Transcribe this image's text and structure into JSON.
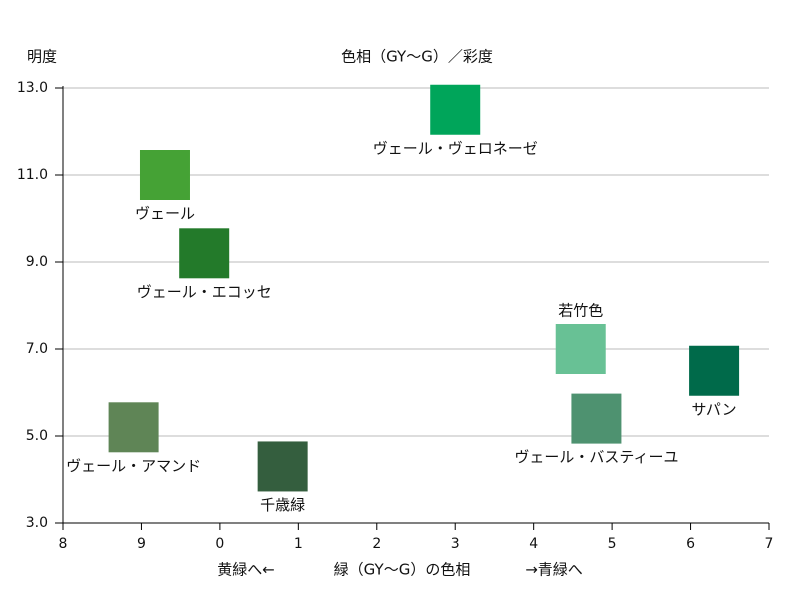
{
  "chart_data": {
    "type": "scatter",
    "title": "色相（GY〜G）／彩度",
    "ylabel": "明度",
    "xlabel": "緑（GY〜G）の色相",
    "annotations": [
      "黄緑へ←",
      "→青緑へ"
    ],
    "xlim": [
      0,
      9
    ],
    "xticks": [
      {
        "value": 0,
        "label": "8"
      },
      {
        "value": 1,
        "label": "9"
      },
      {
        "value": 2,
        "label": "0"
      },
      {
        "value": 3,
        "label": "1"
      },
      {
        "value": 4,
        "label": "2"
      },
      {
        "value": 5,
        "label": "3"
      },
      {
        "value": 6,
        "label": "4"
      },
      {
        "value": 7,
        "label": "5"
      },
      {
        "value": 8,
        "label": "6"
      },
      {
        "value": 9,
        "label": "7"
      }
    ],
    "ylim": [
      3,
      13
    ],
    "yticks": [
      {
        "value": 3,
        "label": "3.0"
      },
      {
        "value": 5,
        "label": "5.0"
      },
      {
        "value": 7,
        "label": "7.0"
      },
      {
        "value": 9,
        "label": "9.0"
      },
      {
        "value": 11,
        "label": "11.0"
      },
      {
        "value": 13,
        "label": "13.0"
      }
    ],
    "grid": true,
    "points": [
      {
        "name": "ヴェール・ヴェロネーゼ",
        "color": "#00a55a",
        "x": 5.0,
        "y": 12.5
      },
      {
        "name": "ヴェール",
        "color": "#45a235",
        "x": 1.3,
        "y": 11.0
      },
      {
        "name": "ヴェール・エコッセ",
        "color": "#237a2a",
        "x": 1.8,
        "y": 9.2
      },
      {
        "name": "若竹色",
        "color": "#68c195",
        "x": 6.6,
        "y": 7.0
      },
      {
        "name": "サパン",
        "color": "#006a4a",
        "x": 8.3,
        "y": 6.5
      },
      {
        "name": "ヴェール・バスティーユ",
        "color": "#4e9270",
        "x": 6.8,
        "y": 5.4
      },
      {
        "name": "ヴェール・アマンド",
        "color": "#5f8556",
        "x": 0.9,
        "y": 5.2
      },
      {
        "name": "千歳緑",
        "color": "#345e3e",
        "x": 2.8,
        "y": 4.3
      }
    ]
  }
}
